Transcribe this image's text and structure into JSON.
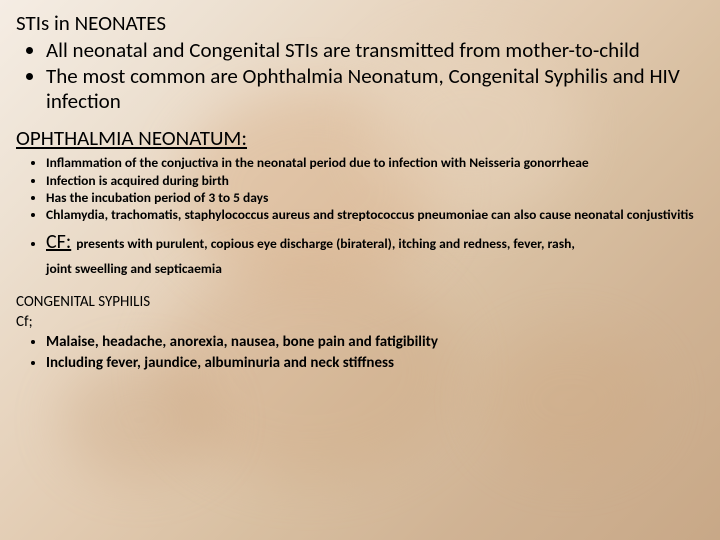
{
  "colors": {
    "text": "#000000",
    "bg_gradient_stops": [
      "#f5ede4",
      "#ede1d2",
      "#e8d6c1",
      "#e1cab0",
      "#d8bfa1",
      "#d0b394",
      "#c8a887"
    ]
  },
  "typography": {
    "family": "Calibri / Segoe UI",
    "title_size_pt": 16,
    "body_large_size_pt": 16,
    "body_small_size_pt": 10,
    "body_medium_size_pt": 11
  },
  "title": "STIs in NEONATES",
  "main_bullets": [
    " All neonatal and Congenital STIs are transmitted from mother-to-child",
    "The most common are Ophthalmia Neonatum, Congenital Syphilis and HIV infection"
  ],
  "section1": {
    "heading": "OPHTHALMIA NEONATUM:",
    "bullets": [
      "Inflammation of the conjuctiva in the neonatal period due to infection with Neisseria gonorrheae",
      "Infection is acquired during birth",
      "Has the incubation period of 3 to 5 days",
      "Chlamydia, trachomatis, staphylococcus aureus and streptococcus pneumoniae can also cause neonatal conjustivitis"
    ],
    "cf_label": "CF:",
    "cf_text": "presents with purulent, copious eye discharge (birateral), itching and redness, fever, rash,",
    "cf_cont": "joint sweelling and septicaemia"
  },
  "section2": {
    "title": "CONGENITAL SYPHILIS",
    "cf_label": "Cf;",
    "bullets": [
      "Malaise, headache, anorexia, nausea, bone pain and fatigibility",
      "Including fever, jaundice, albuminuria  and neck stiffness"
    ]
  }
}
